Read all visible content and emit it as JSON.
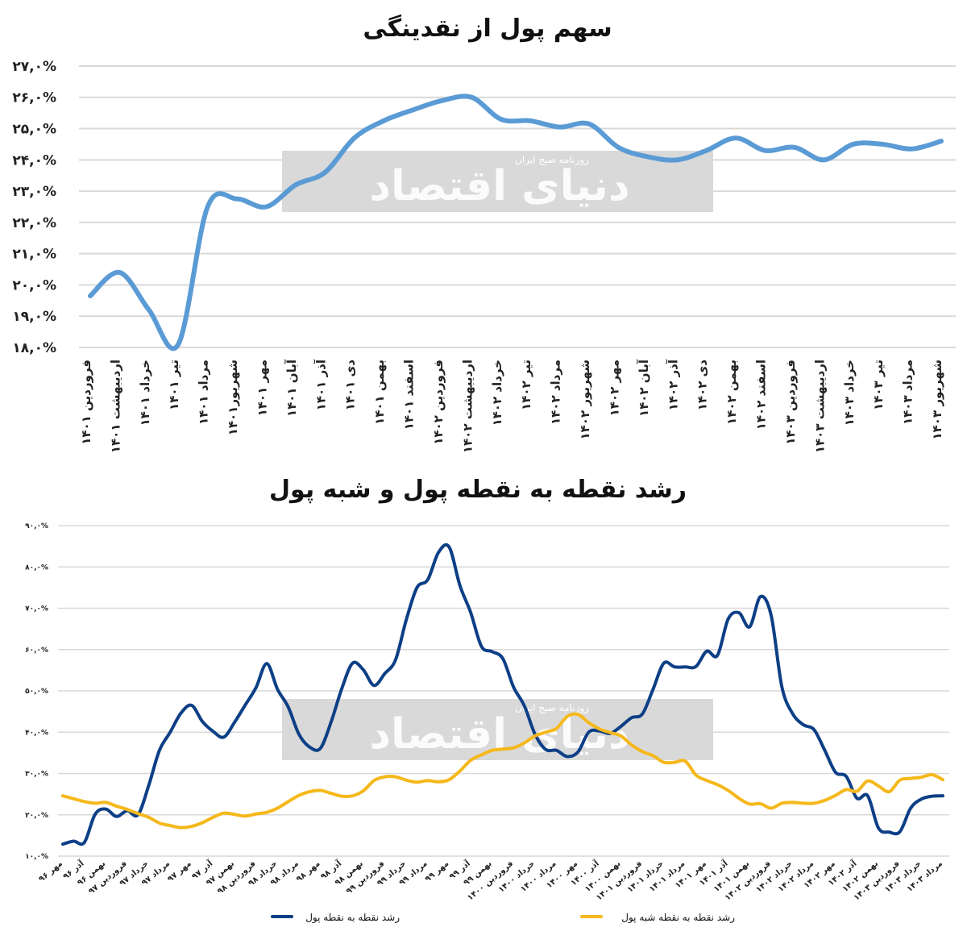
{
  "watermark": {
    "logo": "دنیای اقتصاد",
    "tagline": "روزنامه صبح ایران"
  },
  "chart_data": [
    {
      "type": "line",
      "title": "سهم پول از نقدینگی",
      "xlabel": "",
      "ylabel": "",
      "ylim": [
        18,
        27
      ],
      "y_ticks": [
        "۱۸,۰%",
        "۱۹,۰%",
        "۲۰,۰%",
        "۲۱,۰%",
        "۲۲,۰%",
        "۲۳,۰%",
        "۲۴,۰%",
        "۲۵,۰%",
        "۲۶,۰%",
        "۲۷,۰%"
      ],
      "grid": true,
      "legend": "none",
      "color": "#5b9bd5",
      "categories": [
        "فروردین ۱۴۰۱",
        "اردیبهشت ۱۴۰۱",
        "خرداد ۱۴۰۱",
        "تیر ۱۴۰۱",
        "مرداد ۱۴۰۱",
        "شهریور۱۴۰۱",
        "مهر ۱۴۰۱",
        "آبان ۱۴۰۱",
        "آذر ۱۴۰۱",
        "دی ۱۴۰۱",
        "بهمن ۱۴۰۱",
        "اسفند ۱۴۰۱",
        "فروردین ۱۴۰۲",
        "اردیبهشت ۱۴۰۲",
        "خرداد ۱۴۰۲",
        "تیر ۱۴۰۲",
        "مرداد ۱۴۰۲",
        "شهریور ۱۴۰۲",
        "مهر ۱۴۰۲",
        "آبان ۱۴۰۲",
        "آذر ۱۴۰۲",
        "دی ۱۴۰۲",
        "بهمن ۱۴۰۲",
        "اسفند ۱۴۰۲",
        "فروردین ۱۴۰۳",
        "اردیبهشت ۱۴۰۳",
        "خرداد ۱۴۰۳",
        "تیر ۱۴۰۳",
        "مرداد ۱۴۰۳",
        "شهریور ۱۴۰۳"
      ],
      "values": [
        19.65,
        20.4,
        19.2,
        18.1,
        22.5,
        22.75,
        22.5,
        23.2,
        23.6,
        24.7,
        25.25,
        25.6,
        25.9,
        26.0,
        25.3,
        25.25,
        25.05,
        25.15,
        24.4,
        24.1,
        24.0,
        24.3,
        24.7,
        24.3,
        24.4,
        24.0,
        24.5,
        24.5,
        24.35,
        24.6
      ]
    },
    {
      "type": "line",
      "title": "رشد نقطه به نقطه پول و شبه پول",
      "xlabel": "",
      "ylabel": "",
      "ylim": [
        10,
        90
      ],
      "y_ticks": [
        "۱۰,۰%",
        "۲۰,۰%",
        "۳۰,۰%",
        "۴۰,۰%",
        "۵۰,۰%",
        "۶۰,۰%",
        "۷۰,۰%",
        "۸۰,۰%",
        "۹۰,۰%"
      ],
      "grid": true,
      "legend": "bottom",
      "categories": [
        "مهر ۹۶",
        "",
        "آذر ۹۶",
        "",
        "بهمن ۹۶",
        "",
        "فروردین ۹۷",
        "",
        "خرداد ۹۷",
        "",
        "مرداد ۹۷",
        "",
        "مهر ۹۷",
        "",
        "آذر ۹۷",
        "",
        "بهمن ۹۷",
        "",
        "فروردین ۹۸",
        "",
        "خرداد ۹۸",
        "",
        "مرداد ۹۸",
        "",
        "مهر ۹۸",
        "",
        "آذر ۹۸",
        "",
        "بهمن ۹۸",
        "",
        "فروردین ۹۹",
        "",
        "خرداد ۹۹",
        "",
        "مرداد ۹۹",
        "",
        "مهر ۹۹",
        "",
        "آذر ۹۹",
        "",
        "بهمن ۹۹",
        "",
        "فروردین ۱۴۰۰",
        "",
        "خرداد ۱۴۰۰",
        "",
        "مرداد ۱۴۰۰",
        "",
        "مهر ۱۴۰۰",
        "",
        "آذر ۱۴۰۰",
        "",
        "بهمن ۱۴۰۰",
        "",
        "فروردین ۱۴۰۱",
        "",
        "خرداد ۱۴۰۱",
        "",
        "مرداد ۱۴۰۱",
        "",
        "مهر ۱۴۰۱",
        "",
        "آذر ۱۴۰۱",
        "",
        "بهمن ۱۴۰۱",
        "",
        "فروردین ۱۴۰۲",
        "",
        "خرداد ۱۴۰۲",
        "",
        "مرداد ۱۴۰۲",
        "",
        "مهر ۱۴۰۲",
        "",
        "آذر ۱۴۰۲",
        "",
        "بهمن ۱۴۰۲",
        "",
        "فروردین ۱۴۰۳",
        "",
        "خرداد ۱۴۰۳",
        "",
        "مرداد ۱۴۰۳"
      ],
      "series": [
        {
          "name": "رشد نقطه به نقطه پول",
          "color": "#0d3f86",
          "values": [
            12.9,
            13.6,
            13.3,
            20.1,
            21.4,
            19.6,
            21.0,
            20.0,
            27.1,
            35.6,
            40.0,
            44.6,
            46.5,
            42.6,
            40.2,
            38.8,
            42.4,
            46.6,
            50.8,
            56.6,
            50.4,
            46.1,
            39.5,
            36.4,
            36.1,
            42.5,
            50.6,
            56.7,
            55.1,
            51.3,
            54.2,
            57.5,
            67.2,
            75.0,
            76.9,
            83.5,
            84.8,
            75.5,
            69.0,
            60.8,
            59.5,
            57.8,
            50.9,
            46.4,
            39.5,
            35.8,
            35.6,
            34.1,
            35.2,
            40.0,
            40.3,
            39.7,
            41.4,
            43.5,
            44.4,
            50.4,
            56.7,
            55.8,
            55.8,
            55.9,
            59.6,
            58.6,
            67.4,
            68.9,
            65.5,
            72.8,
            68.3,
            51.0,
            44.5,
            41.8,
            40.6,
            35.6,
            30.3,
            29.3,
            24.0,
            24.6,
            16.8,
            15.8,
            15.9,
            21.6,
            23.8,
            24.5,
            24.6
          ]
        },
        {
          "name": "رشد نقطه به نقطه شبه پول",
          "color": "#f5b81c",
          "values": [
            24.6,
            23.9,
            23.2,
            22.8,
            23.0,
            22.1,
            21.3,
            20.3,
            19.4,
            18.0,
            17.4,
            16.9,
            17.2,
            18.1,
            19.4,
            20.4,
            20.1,
            19.7,
            20.2,
            20.6,
            21.6,
            23.2,
            24.7,
            25.6,
            25.9,
            25.2,
            24.5,
            24.6,
            25.8,
            28.3,
            29.2,
            29.2,
            28.4,
            27.9,
            28.3,
            28.0,
            28.5,
            30.6,
            33.2,
            34.5,
            35.6,
            35.9,
            36.2,
            37.4,
            39.1,
            40.0,
            40.9,
            43.8,
            44.3,
            42.3,
            40.8,
            39.9,
            39.1,
            36.9,
            35.3,
            34.3,
            32.7,
            32.7,
            33.0,
            29.6,
            28.3,
            27.3,
            25.9,
            24.0,
            22.6,
            22.7,
            21.6,
            22.8,
            23.0,
            22.8,
            22.8,
            23.5,
            24.7,
            26.1,
            25.7,
            28.2,
            27.0,
            25.6,
            28.4,
            28.8,
            29.1,
            29.7,
            28.5
          ]
        }
      ]
    }
  ]
}
